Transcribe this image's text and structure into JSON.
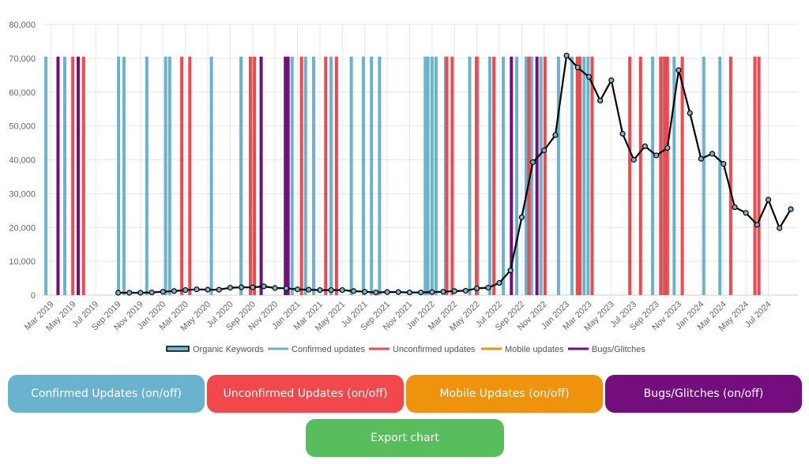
{
  "colors": {
    "confirmed": "#69b3cf",
    "unconfirmed": "#f2474b",
    "mobile": "#ef920c",
    "bugs": "#740d7e",
    "line": "#000000",
    "marker": "#71b6d8",
    "export": "#58be5c",
    "grid": "#e6e6e6",
    "axis_text": "#666666"
  },
  "buttons": {
    "confirmed": "Confirmed Updates (on/off)",
    "unconfirmed": "Unconfirmed Updates (on/off)",
    "mobile": "Mobile Updates (on/off)",
    "bugs": "Bugs/Glitches (on/off)",
    "export": "Export chart"
  },
  "chart_data": {
    "type": "line",
    "title": "",
    "xlabel": "",
    "ylabel": "",
    "x_range": [
      2019.1,
      2024.72
    ],
    "ylim": [
      0,
      80000
    ],
    "y_ticks": [
      0,
      10000,
      20000,
      30000,
      40000,
      50000,
      60000,
      70000,
      80000
    ],
    "y_tick_labels": [
      "0",
      "10,000",
      "20,000",
      "30,000",
      "40,000",
      "50,000",
      "60,000",
      "70,000",
      "80,000"
    ],
    "x_ticks": [
      {
        "label": "Mar 2019",
        "x": 2019.167
      },
      {
        "label": "May 2019",
        "x": 2019.333
      },
      {
        "label": "Jul 2019",
        "x": 2019.5
      },
      {
        "label": "Sep 2019",
        "x": 2019.667
      },
      {
        "label": "Nov 2019",
        "x": 2019.833
      },
      {
        "label": "Jan 2020",
        "x": 2020.0
      },
      {
        "label": "Mar 2020",
        "x": 2020.167
      },
      {
        "label": "May 2020",
        "x": 2020.333
      },
      {
        "label": "Jul 2020",
        "x": 2020.5
      },
      {
        "label": "Sep 2020",
        "x": 2020.667
      },
      {
        "label": "Nov 2020",
        "x": 2020.833
      },
      {
        "label": "Jan 2021",
        "x": 2021.0
      },
      {
        "label": "Mar 2021",
        "x": 2021.167
      },
      {
        "label": "May 2021",
        "x": 2021.333
      },
      {
        "label": "Jul 2021",
        "x": 2021.5
      },
      {
        "label": "Sep 2021",
        "x": 2021.667
      },
      {
        "label": "Nov 2021",
        "x": 2021.833
      },
      {
        "label": "Jan 2022",
        "x": 2022.0
      },
      {
        "label": "Mar 2022",
        "x": 2022.167
      },
      {
        "label": "May 2022",
        "x": 2022.333
      },
      {
        "label": "Jul 2022",
        "x": 2022.5
      },
      {
        "label": "Sep 2022",
        "x": 2022.667
      },
      {
        "label": "Nov 2022",
        "x": 2022.833
      },
      {
        "label": "Jan 2023",
        "x": 2023.0
      },
      {
        "label": "Mar 2023",
        "x": 2023.167
      },
      {
        "label": "May 2023",
        "x": 2023.333
      },
      {
        "label": "Jul 2023",
        "x": 2023.5
      },
      {
        "label": "Sep 2023",
        "x": 2023.667
      },
      {
        "label": "Nov 2023",
        "x": 2023.833
      },
      {
        "label": "Jan 2024",
        "x": 2024.0
      },
      {
        "label": "Mar 2024",
        "x": 2024.167
      },
      {
        "label": "May 2024",
        "x": 2024.333
      },
      {
        "label": "Jul 2024",
        "x": 2024.5
      }
    ],
    "series": [
      {
        "name": "Organic Keywords",
        "points": [
          [
            2019.667,
            700
          ],
          [
            2019.75,
            700
          ],
          [
            2019.833,
            700
          ],
          [
            2019.917,
            800
          ],
          [
            2020.0,
            1000
          ],
          [
            2020.083,
            1200
          ],
          [
            2020.167,
            1500
          ],
          [
            2020.25,
            1700
          ],
          [
            2020.333,
            1600
          ],
          [
            2020.417,
            1600
          ],
          [
            2020.5,
            2200
          ],
          [
            2020.583,
            2300
          ],
          [
            2020.667,
            2300
          ],
          [
            2020.75,
            2600
          ],
          [
            2020.833,
            2100
          ],
          [
            2020.917,
            2000
          ],
          [
            2021.0,
            1700
          ],
          [
            2021.083,
            1600
          ],
          [
            2021.167,
            1500
          ],
          [
            2021.25,
            1500
          ],
          [
            2021.333,
            1500
          ],
          [
            2021.417,
            1200
          ],
          [
            2021.5,
            1000
          ],
          [
            2021.583,
            800
          ],
          [
            2021.667,
            900
          ],
          [
            2021.75,
            900
          ],
          [
            2021.833,
            800
          ],
          [
            2021.917,
            800
          ],
          [
            2022.0,
            900
          ],
          [
            2022.083,
            1000
          ],
          [
            2022.167,
            1200
          ],
          [
            2022.25,
            1300
          ],
          [
            2022.333,
            2000
          ],
          [
            2022.417,
            2200
          ],
          [
            2022.5,
            3600
          ],
          [
            2022.583,
            7300
          ],
          [
            2022.667,
            23000
          ],
          [
            2022.75,
            39300
          ],
          [
            2022.833,
            42800
          ],
          [
            2022.917,
            47300
          ],
          [
            2023.0,
            70800
          ],
          [
            2023.083,
            67300
          ],
          [
            2023.167,
            64500
          ],
          [
            2023.25,
            57500
          ],
          [
            2023.333,
            63500
          ],
          [
            2023.417,
            47700
          ],
          [
            2023.5,
            40000
          ],
          [
            2023.583,
            44000
          ],
          [
            2023.667,
            41300
          ],
          [
            2023.75,
            43500
          ],
          [
            2023.833,
            66500
          ],
          [
            2023.917,
            53800
          ],
          [
            2024.0,
            40300
          ],
          [
            2024.083,
            41800
          ],
          [
            2024.167,
            38800
          ],
          [
            2024.25,
            26000
          ],
          [
            2024.333,
            24300
          ],
          [
            2024.417,
            20800
          ],
          [
            2024.5,
            28200
          ],
          [
            2024.583,
            19800
          ],
          [
            2024.667,
            25400
          ]
        ]
      },
      {
        "name": "Confirmed updates",
        "events": [
          2019.13,
          2019.27,
          2019.67,
          2019.71,
          2019.88,
          2020.02,
          2020.05,
          2020.36,
          2020.58,
          2020.96,
          2021.06,
          2021.12,
          2021.25,
          2021.4,
          2021.49,
          2021.55,
          2021.61,
          2021.95,
          2021.97,
          2022.0,
          2022.03,
          2022.1,
          2022.28,
          2022.34,
          2022.43,
          2022.53,
          2022.63,
          2022.7,
          2022.74,
          2022.81,
          2022.94,
          2023.04,
          2023.13,
          2023.16,
          2023.64,
          2023.72,
          2023.8,
          2024.02,
          2024.14
        ]
      },
      {
        "name": "Unconfirmed updates",
        "events": [
          2019.33,
          2019.41,
          2020.14,
          2020.2,
          2020.65,
          2020.68,
          2021.03,
          2021.21,
          2021.29,
          2022.11,
          2022.15,
          2022.33,
          2022.46,
          2022.72,
          2022.84,
          2023.08,
          2023.1,
          2023.19,
          2023.47,
          2023.55,
          2023.7,
          2023.73,
          2023.75,
          2023.86,
          2024.22,
          2024.4,
          2024.43
        ]
      },
      {
        "name": "Mobile updates",
        "events": []
      },
      {
        "name": "Bugs/Glitches",
        "events": [
          2019.22,
          2019.37,
          2020.73,
          2020.91,
          2020.93,
          2022.59,
          2022.78
        ]
      }
    ],
    "event_height": 70500,
    "legend": {
      "position": "bottom",
      "entries": [
        "Organic Keywords",
        "Confirmed updates",
        "Unconfirmed updates",
        "Mobile updates",
        "Bugs/Glitches"
      ]
    },
    "grid": true
  }
}
